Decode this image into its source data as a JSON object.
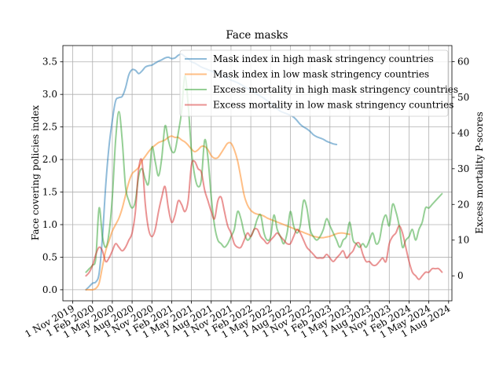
{
  "chart_data": {
    "type": "line",
    "title": "Face masks",
    "ylabel_left": "Face covering policies index",
    "ylabel_right": "Excess mortality P-scores",
    "xlabel": "",
    "x_tick_labels": [
      "1 Nov 2019",
      "1 Feb 2020",
      "1 May 2020",
      "1 Aug 2020",
      "1 Nov 2020",
      "1 Feb 2021",
      "1 May 2021",
      "1 Aug 2021",
      "1 Nov 2021",
      "1 Feb 2022",
      "1 May 2022",
      "1 Aug 2022",
      "1 Nov 2022",
      "1 Feb 2023",
      "1 May 2023",
      "1 Aug 2023",
      "1 Nov 2023",
      "1 Feb 2024",
      "1 May 2024",
      "1 Aug 2024"
    ],
    "xlim_months": [
      -1.5,
      57.5
    ],
    "ylim_left": [
      -0.17,
      3.75
    ],
    "ylim_right": [
      -7,
      64.5
    ],
    "y_ticks_left": [
      "0.0",
      "0.5",
      "1.0",
      "1.5",
      "2.0",
      "2.5",
      "3.0",
      "3.5"
    ],
    "y_ticks_right": [
      "0",
      "10",
      "20",
      "30",
      "40",
      "50",
      "60"
    ],
    "grid": true,
    "legend_position": "top-right",
    "series": [
      {
        "name": "Mask index in high mask stringency countries",
        "axis": "left",
        "color": "#1f77b4",
        "x": [
          2,
          2.5,
          3,
          3.5,
          4,
          4.5,
          5,
          5.5,
          6,
          6.5,
          7,
          7.5,
          8,
          8.5,
          9,
          9.5,
          10,
          10.5,
          11,
          11.5,
          12,
          12.5,
          13,
          13.5,
          14,
          14.5,
          15,
          15.5,
          16,
          16.5,
          17,
          17.5,
          18,
          18.5,
          19,
          19.5,
          20,
          20.5,
          21,
          21.5,
          22,
          22.5,
          23,
          23.5,
          24,
          24.5,
          25,
          25.5,
          26,
          26.5,
          27,
          27.5,
          28,
          28.5,
          29,
          29.5,
          30,
          30.5,
          31,
          31.5,
          32,
          32.5,
          33,
          33.5,
          34,
          34.5,
          35,
          35.5,
          36,
          36.5,
          37,
          37.5,
          38,
          38.5,
          39,
          39.5,
          40
        ],
        "values": [
          0.0,
          0.05,
          0.1,
          0.12,
          0.25,
          0.8,
          1.6,
          2.2,
          2.6,
          2.9,
          2.95,
          2.97,
          3.1,
          3.3,
          3.38,
          3.37,
          3.32,
          3.36,
          3.42,
          3.44,
          3.45,
          3.48,
          3.51,
          3.53,
          3.56,
          3.57,
          3.55,
          3.56,
          3.6,
          3.62,
          3.58,
          3.55,
          3.5,
          3.48,
          3.45,
          3.42,
          3.4,
          3.38,
          3.36,
          3.34,
          3.32,
          3.3,
          3.28,
          3.25,
          3.22,
          3.2,
          3.18,
          3.15,
          3.12,
          3.09,
          3.06,
          3.03,
          3.0,
          2.97,
          2.94,
          2.9,
          2.86,
          2.82,
          2.78,
          2.74,
          2.72,
          2.7,
          2.68,
          2.65,
          2.6,
          2.54,
          2.5,
          2.47,
          2.43,
          2.38,
          2.35,
          2.33,
          2.31,
          2.28,
          2.26,
          2.24,
          2.23
        ]
      },
      {
        "name": "Mask index in low mask stringency countries",
        "axis": "left",
        "color": "#ff7f0e",
        "x": [
          2,
          2.5,
          3,
          3.5,
          4,
          4.5,
          5,
          5.5,
          6,
          6.5,
          7,
          7.5,
          8,
          8.5,
          9,
          9.5,
          10,
          10.5,
          11,
          11.5,
          12,
          12.5,
          13,
          13.5,
          14,
          14.5,
          15,
          15.5,
          16,
          16.5,
          17,
          17.5,
          18,
          18.5,
          19,
          19.5,
          20,
          20.5,
          21,
          21.5,
          22,
          22.5,
          23,
          23.5,
          24,
          24.5,
          25,
          25.5,
          26,
          26.5,
          27,
          27.5,
          28,
          28.5,
          29,
          29.5,
          30,
          30.5,
          31,
          31.5,
          32,
          32.5,
          33,
          33.5,
          34,
          34.5,
          35,
          35.5,
          36,
          36.5,
          37,
          37.5,
          38,
          38.5,
          39,
          39.5,
          40,
          40.5,
          41,
          41.5,
          42
        ],
        "values": [
          0.0,
          0.0,
          0.0,
          0.02,
          0.1,
          0.35,
          0.6,
          0.75,
          0.9,
          1.0,
          1.1,
          1.25,
          1.45,
          1.65,
          1.78,
          1.83,
          1.88,
          1.98,
          2.05,
          2.12,
          2.18,
          2.22,
          2.26,
          2.28,
          2.3,
          2.34,
          2.36,
          2.34,
          2.34,
          2.3,
          2.27,
          2.22,
          2.16,
          2.12,
          2.15,
          2.2,
          2.2,
          2.15,
          2.06,
          2.02,
          2.03,
          2.1,
          2.18,
          2.25,
          2.25,
          2.15,
          1.98,
          1.72,
          1.45,
          1.3,
          1.22,
          1.18,
          1.16,
          1.15,
          1.13,
          1.1,
          1.08,
          1.06,
          1.04,
          1.02,
          1.0,
          0.98,
          0.96,
          0.94,
          0.92,
          0.9,
          0.88,
          0.86,
          0.84,
          0.82,
          0.81,
          0.8,
          0.8,
          0.81,
          0.82,
          0.84,
          0.86,
          0.87,
          0.87,
          0.86,
          0.85
        ]
      },
      {
        "name": "Excess mortality in high mask stringency countries",
        "axis": "right",
        "color": "#2ca02c",
        "x": [
          2,
          2.5,
          3,
          3.5,
          4,
          4.5,
          5,
          5.5,
          6,
          6.5,
          7,
          7.5,
          8,
          8.5,
          9,
          9.5,
          10,
          10.5,
          11,
          11.5,
          12,
          12.5,
          13,
          13.5,
          14,
          14.5,
          15,
          15.5,
          16,
          16.5,
          17,
          17.5,
          18,
          18.5,
          19,
          19.5,
          20,
          20.5,
          21,
          21.5,
          22,
          22.5,
          23,
          23.5,
          24,
          24.5,
          25,
          25.5,
          26,
          26.5,
          27,
          27.5,
          28,
          28.5,
          29,
          29.5,
          30,
          30.5,
          31,
          31.5,
          32,
          32.5,
          33,
          33.5,
          34,
          34.5,
          35,
          35.5,
          36,
          36.5,
          37,
          37.5,
          38,
          38.5,
          39,
          39.5,
          40,
          40.5,
          41,
          41.5,
          42,
          42.5,
          43,
          43.5,
          44,
          44.5,
          45,
          45.5,
          46,
          46.5,
          47,
          47.5,
          48,
          48.5,
          49,
          49.5,
          50,
          50.5,
          51,
          51.5,
          52,
          52.5,
          53,
          53.5,
          54,
          54.5,
          55,
          55.5,
          56
        ],
        "values": [
          1,
          2,
          3,
          5,
          19,
          11,
          8,
          12,
          22,
          38,
          46,
          38,
          25,
          21,
          19,
          21,
          28,
          30,
          27,
          26,
          36,
          32,
          28,
          33,
          42,
          38,
          35,
          35,
          40,
          46,
          56,
          48,
          35,
          28,
          25,
          27,
          38,
          33,
          22,
          14,
          10,
          9,
          8,
          9,
          11,
          13,
          18,
          16,
          12,
          10,
          11,
          13,
          16,
          17,
          12,
          10,
          11,
          17,
          13,
          11,
          9,
          12,
          18,
          14,
          12,
          14,
          21,
          19,
          13,
          11,
          10,
          11,
          13,
          16,
          14,
          12,
          10,
          8,
          10,
          11,
          15,
          10,
          9,
          8,
          9,
          8,
          10,
          12,
          9,
          10,
          15,
          17,
          14,
          20,
          18,
          14,
          8,
          10,
          11,
          13,
          10,
          13,
          15,
          19,
          19,
          20,
          21,
          22,
          23
        ]
      },
      {
        "name": "Excess mortality in low mask stringency countries",
        "axis": "right",
        "color": "#d62728",
        "x": [
          2,
          2.5,
          3,
          3.5,
          4,
          4.5,
          5,
          5.5,
          6,
          6.5,
          7,
          7.5,
          8,
          8.5,
          9,
          9.5,
          10,
          10.5,
          11,
          11.5,
          12,
          12.5,
          13,
          13.5,
          14,
          14.5,
          15,
          15.5,
          16,
          16.5,
          17,
          17.5,
          18,
          18.5,
          19,
          19.5,
          20,
          20.5,
          21,
          21.5,
          22,
          22.5,
          23,
          23.5,
          24,
          24.5,
          25,
          25.5,
          26,
          26.5,
          27,
          27.5,
          28,
          28.5,
          29,
          29.5,
          30,
          30.5,
          31,
          31.5,
          32,
          32.5,
          33,
          33.5,
          34,
          34.5,
          35,
          35.5,
          36,
          36.5,
          37,
          37.5,
          38,
          38.5,
          39,
          39.5,
          40,
          40.5,
          41,
          41.5,
          42,
          42.5,
          43,
          43.5,
          44,
          44.5,
          45,
          45.5,
          46,
          46.5,
          47,
          47.5,
          48,
          48.5,
          49,
          49.5,
          50,
          50.5,
          51,
          51.5,
          52,
          52.5,
          53,
          53.5,
          54,
          54.5,
          55,
          55.5,
          56
        ],
        "values": [
          0,
          1,
          3,
          6,
          8,
          7,
          4,
          5,
          7,
          9,
          8,
          7,
          8,
          10,
          12,
          18,
          30,
          32,
          20,
          13,
          11,
          13,
          18,
          22,
          25,
          19,
          15,
          17,
          21,
          20,
          18,
          21,
          31,
          32,
          30,
          29,
          24,
          21,
          18,
          16,
          21,
          22,
          18,
          14,
          12,
          9,
          8,
          8,
          10,
          12,
          11,
          13,
          13,
          11,
          10,
          9,
          10,
          11,
          12,
          11,
          10,
          9,
          9,
          11,
          13,
          12,
          10,
          8,
          7,
          6,
          5,
          5,
          5,
          6,
          5,
          4,
          5,
          6,
          7,
          5,
          6,
          7,
          9,
          9,
          6,
          4,
          4,
          3,
          3,
          4,
          5,
          4,
          9,
          11,
          12,
          14,
          12,
          8,
          4,
          1,
          0,
          -1,
          0,
          1,
          1,
          2,
          2,
          2,
          1
        ]
      }
    ]
  }
}
